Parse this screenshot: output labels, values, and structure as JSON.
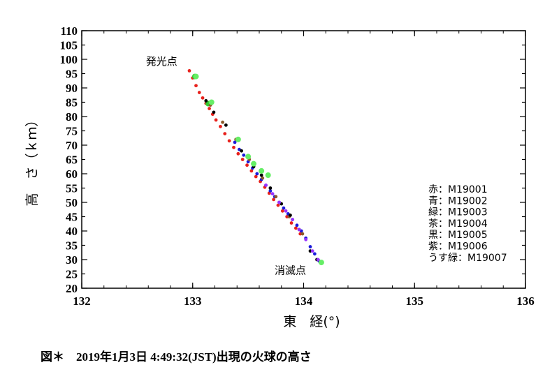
{
  "caption": "図＊　2019年1月3日 4:49:32(JST)出現の火球の高さ",
  "chart_data": {
    "type": "scatter",
    "title": "",
    "xlabel": "東　経(°)",
    "ylabel": "高　さ（ｋｍ）",
    "xlim": [
      132,
      136
    ],
    "ylim": [
      20,
      110
    ],
    "xticks": [
      132,
      133,
      134,
      135,
      136
    ],
    "yticks": [
      20,
      25,
      30,
      35,
      40,
      45,
      50,
      55,
      60,
      65,
      70,
      75,
      80,
      85,
      90,
      95,
      100,
      105,
      110
    ],
    "grid": false,
    "legend_position": "right",
    "annotations": [
      {
        "text": "発光点",
        "x": 132.72,
        "y": 98
      },
      {
        "text": "消滅点",
        "x": 133.88,
        "y": 25
      }
    ],
    "series": [
      {
        "name": "赤：M19001",
        "color": "#e8211c",
        "x": [
          132.97,
          133.0,
          133.03,
          133.06,
          133.09,
          133.12,
          133.15,
          133.18,
          133.21,
          133.25,
          133.29,
          133.33,
          133.37,
          133.41,
          133.45,
          133.49,
          133.53,
          133.57,
          133.61,
          133.65,
          133.69,
          133.73,
          133.77,
          133.81,
          133.85,
          133.89,
          133.93,
          133.97
        ],
        "y": [
          96,
          93.5,
          90.8,
          88.4,
          86.5,
          84.6,
          82.8,
          80.8,
          78.8,
          76.5,
          74,
          71.5,
          69.2,
          67,
          65,
          63,
          61,
          59,
          57.3,
          55.3,
          53.2,
          51,
          49,
          47,
          45,
          42.8,
          41,
          39
        ]
      },
      {
        "name": "青：M19002",
        "color": "#1a1adb",
        "x": [
          133.38,
          133.42,
          133.46,
          133.5,
          133.54,
          133.58,
          133.62,
          133.66,
          133.7,
          133.74,
          133.78,
          133.82,
          133.86,
          133.9,
          133.94,
          133.98,
          134.02,
          134.06,
          134.1,
          134.14
        ],
        "y": [
          71,
          68.5,
          66.5,
          64.2,
          62,
          60,
          58,
          56,
          54,
          52,
          50,
          48,
          46,
          44,
          42,
          40,
          37.5,
          34.5,
          32,
          29.5
        ]
      },
      {
        "name": "緑：M19003",
        "color": "#33cc33",
        "x": [
          133.02,
          133.14
        ],
        "y": [
          94,
          84.5
        ]
      },
      {
        "name": "茶：M19004",
        "color": "#8b5a2b",
        "x": [
          133.16,
          133.27,
          133.39,
          133.51,
          133.63,
          133.75,
          133.87,
          133.99
        ],
        "y": [
          84,
          78,
          72,
          65,
          58.5,
          52,
          45,
          39
        ]
      },
      {
        "name": "黒：M19005",
        "color": "#000000",
        "x": [
          133.12,
          133.19,
          133.3,
          133.44,
          133.55,
          133.62,
          133.7,
          133.8,
          133.88,
          133.96,
          134.06,
          134.12
        ],
        "y": [
          85.5,
          81.5,
          77,
          68,
          62.5,
          59.5,
          55,
          49.5,
          45.5,
          40.5,
          33,
          30
        ]
      },
      {
        "name": "紫：M19006",
        "color": "#9933ff",
        "x": [
          133.66,
          133.72,
          133.78,
          133.84,
          133.9,
          133.96,
          134.02,
          134.08,
          134.13
        ],
        "y": [
          56,
          53,
          50,
          47,
          44,
          40.5,
          37,
          33,
          30
        ]
      },
      {
        "name": "うす緑：M19007",
        "color": "#66ee66",
        "x": [
          133.03,
          133.17,
          133.41,
          133.5,
          133.55,
          133.62,
          133.68,
          134.16
        ],
        "y": [
          94,
          85,
          72,
          66,
          63.5,
          61,
          59.5,
          29
        ]
      }
    ]
  }
}
